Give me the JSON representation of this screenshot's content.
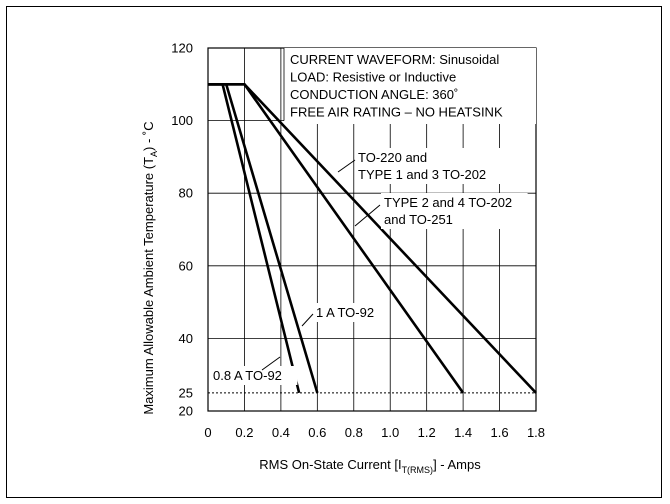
{
  "chart_data": {
    "type": "line",
    "ylabel_main": "Maximum Allowable Ambient Temperature (T",
    "ylabel_sub": "A",
    "ylabel_tail": ") - ˚C",
    "xlabel_main": "RMS On-State Current [I",
    "xlabel_sub": "T(RMS)",
    "xlabel_tail": "] - Amps",
    "xlim": [
      0,
      1.8
    ],
    "ylim": [
      20,
      120
    ],
    "x_ticks": [
      0,
      0.2,
      0.4,
      0.6,
      0.8,
      1.0,
      1.2,
      1.4,
      1.6,
      1.8
    ],
    "x_tick_labels": [
      "0",
      "0.2",
      "0.4",
      "0.6",
      "0.8",
      "1.0",
      "1.2",
      "1.4",
      "1.6",
      "1.8"
    ],
    "y_ticks": [
      20,
      25,
      40,
      60,
      80,
      100,
      120
    ],
    "y_tick_labels": [
      "20",
      "25",
      "40",
      "60",
      "80",
      "100",
      "120"
    ],
    "grid": true,
    "reference_line": {
      "y": 25,
      "style": "dotted"
    },
    "annotation_box": [
      "CURRENT WAVEFORM: Sinusoidal",
      "LOAD: Resistive or Inductive",
      "CONDUCTION ANGLE: 360˚",
      "FREE AIR RATING – NO HEATSINK"
    ],
    "series": [
      {
        "name": "0.8 A TO-92",
        "x": [
          0,
          0.08,
          0.5
        ],
        "y": [
          110,
          110,
          25
        ]
      },
      {
        "name": "1 A TO-92",
        "x": [
          0,
          0.1,
          0.6
        ],
        "y": [
          110,
          110,
          25
        ]
      },
      {
        "name": "TYPE 2 and 4 TO-202 and TO-251",
        "x": [
          0,
          0.2,
          1.4
        ],
        "y": [
          110,
          110,
          25
        ]
      },
      {
        "name": "TO-220 and TYPE 1 and 3 TO-202",
        "x": [
          0,
          0.2,
          1.8
        ],
        "y": [
          110,
          110,
          25
        ]
      }
    ],
    "series_labels": [
      {
        "series": 0,
        "lines": [
          "0.8 A TO-92"
        ]
      },
      {
        "series": 1,
        "lines": [
          "1 A TO-92"
        ]
      },
      {
        "series": 2,
        "lines": [
          "TYPE 2 and 4 TO-202",
          "and TO-251"
        ]
      },
      {
        "series": 3,
        "lines": [
          "TO-220 and",
          "TYPE 1 and 3 TO-202"
        ]
      }
    ]
  }
}
